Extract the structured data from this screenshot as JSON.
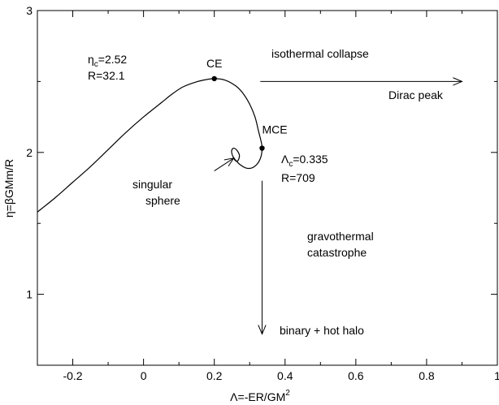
{
  "chart_data": {
    "type": "line",
    "xlabel": {
      "main": "Λ=-ER/GM",
      "sup": "2"
    },
    "ylabel": "η=βGMm/R",
    "xlim": [
      -0.3,
      1.0
    ],
    "ylim": [
      0.5,
      3.0
    ],
    "xticks": [
      -0.2,
      0,
      0.2,
      0.4,
      0.6,
      0.8,
      1
    ],
    "xtick_labels": [
      "-0.2",
      "0",
      "0.2",
      "0.4",
      "0.6",
      "0.8",
      "1"
    ],
    "yticks": [
      1,
      2,
      3
    ],
    "ytick_labels": [
      "1",
      "2",
      "3"
    ],
    "grid": false,
    "series": [
      {
        "x": [
          -0.3,
          -0.25,
          -0.2,
          -0.15,
          -0.1,
          -0.05,
          0.0,
          0.05,
          0.08,
          0.11,
          0.14,
          0.17,
          0.2,
          0.23,
          0.26,
          0.28,
          0.3,
          0.315,
          0.325,
          0.333,
          0.335,
          0.333,
          0.327,
          0.318,
          0.305,
          0.29,
          0.275,
          0.262,
          0.253,
          0.249,
          0.25,
          0.255,
          0.262,
          0.268,
          0.271,
          0.27,
          0.266,
          0.261,
          0.257,
          0.256
        ],
        "y": [
          1.58,
          1.68,
          1.79,
          1.9,
          2.02,
          2.14,
          2.25,
          2.35,
          2.41,
          2.46,
          2.49,
          2.51,
          2.52,
          2.51,
          2.47,
          2.42,
          2.34,
          2.25,
          2.15,
          2.07,
          2.03,
          1.98,
          1.94,
          1.91,
          1.89,
          1.89,
          1.91,
          1.94,
          1.97,
          2.0,
          2.02,
          2.03,
          2.02,
          2.0,
          1.98,
          1.96,
          1.94,
          1.94,
          1.95,
          1.96
        ]
      }
    ],
    "points": [
      {
        "x": 0.2,
        "y": 2.52,
        "label": "CE"
      },
      {
        "x": 0.335,
        "y": 2.03,
        "label": "MCE"
      }
    ],
    "annotations": {
      "ce_eta": {
        "sym": "η",
        "sub": "c",
        "val": "=2.52"
      },
      "ce_r": "R=32.1",
      "mce_lambda": {
        "sym": "Λ",
        "sub": "c",
        "val": "=0.335"
      },
      "mce_r": "R=709",
      "isothermal": "isothermal collapse",
      "dirac": "Dirac peak",
      "singular_1": "singular",
      "singular_2": "sphere",
      "gravo_1": "gravothermal",
      "gravo_2": "catastrophe",
      "binary": "binary + hot halo"
    },
    "arrows": [
      {
        "name": "isothermal-arrow",
        "from": [
          0.33,
          2.5
        ],
        "to": [
          0.9,
          2.5
        ]
      },
      {
        "name": "gravothermal-arrow",
        "from": [
          0.335,
          1.8
        ],
        "to": [
          0.335,
          0.72
        ]
      },
      {
        "name": "singular-arrow",
        "from": [
          0.2,
          1.87
        ],
        "to": [
          0.255,
          1.96
        ]
      }
    ]
  }
}
